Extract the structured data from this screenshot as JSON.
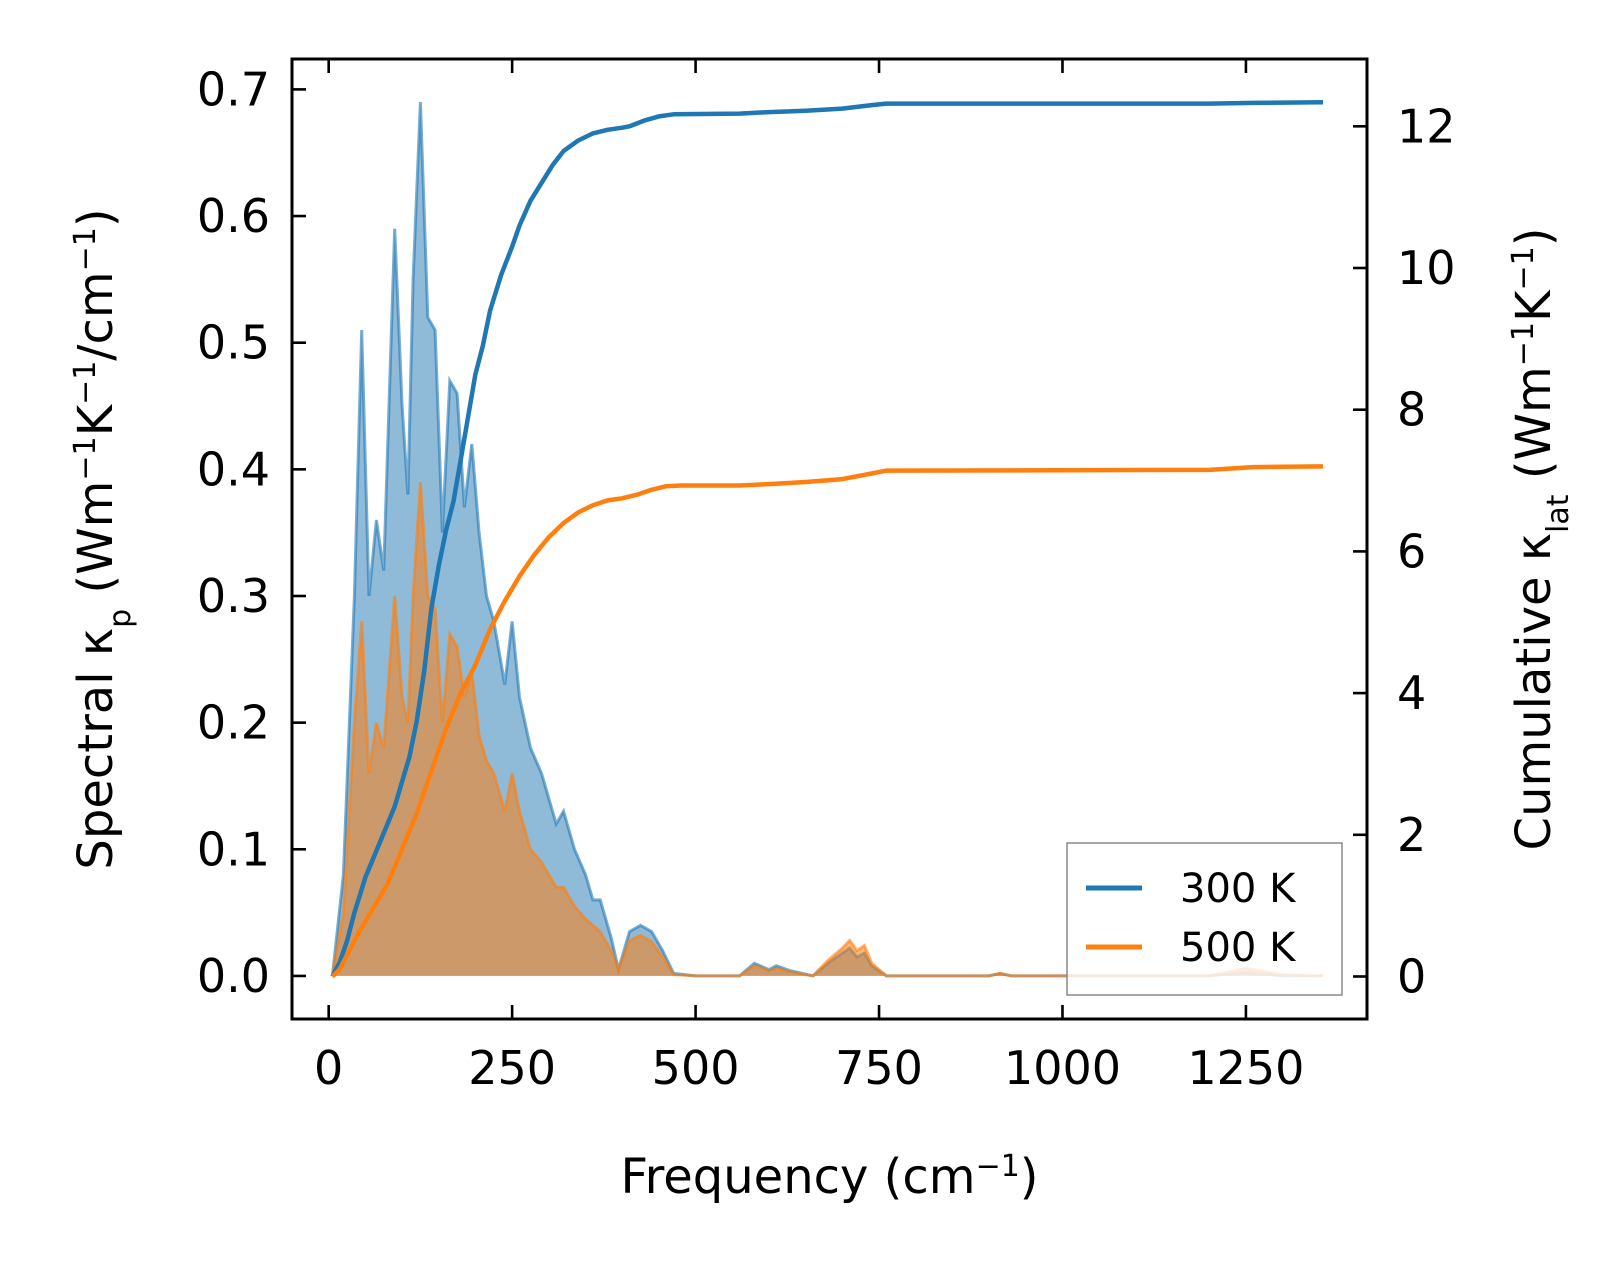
{
  "chart_data": {
    "type": "line",
    "xlabel": {
      "text": "Frequency (cm",
      "sup": "−1",
      "tail": ")"
    },
    "ylabel_left": {
      "pre": "Spectral κ",
      "sub": "p",
      "mid": " (Wm",
      "sup1": "−1",
      "mid2": "K",
      "sup2": "−1",
      "mid3": "/cm",
      "sup3": "−1",
      "tail": ")"
    },
    "ylabel_right": {
      "pre": "Cumulative κ",
      "sub": "lat",
      "mid": " (Wm",
      "sup1": "−1",
      "mid2": "K",
      "sup2": "−1",
      "tail": ")"
    },
    "xlim": [
      -50,
      1415
    ],
    "ylim_left": [
      -0.034,
      0.724
    ],
    "ylim_right": [
      -0.6,
      12.95
    ],
    "x_ticks": [
      0,
      250,
      500,
      750,
      1000,
      1250
    ],
    "x_tick_labels": [
      "0",
      "250",
      "500",
      "750",
      "1000",
      "1250"
    ],
    "y_left_ticks": [
      0.0,
      0.1,
      0.2,
      0.3,
      0.4,
      0.5,
      0.6,
      0.7
    ],
    "y_left_tick_labels": [
      "0.0",
      "0.1",
      "0.2",
      "0.3",
      "0.4",
      "0.5",
      "0.6",
      "0.7"
    ],
    "y_right_ticks": [
      0,
      2,
      4,
      6,
      8,
      10,
      12
    ],
    "y_right_tick_labels": [
      "0",
      "2",
      "4",
      "6",
      "8",
      "10",
      "12"
    ],
    "legend": {
      "position": "lower-right",
      "entries": [
        "300 K",
        "500 K"
      ]
    },
    "series": [
      {
        "name": "300 K",
        "color": "#1f77b4",
        "spectral": [
          [
            5,
            0
          ],
          [
            20,
            0.08
          ],
          [
            35,
            0.3
          ],
          [
            45,
            0.51
          ],
          [
            55,
            0.3
          ],
          [
            65,
            0.36
          ],
          [
            75,
            0.32
          ],
          [
            90,
            0.59
          ],
          [
            100,
            0.45
          ],
          [
            108,
            0.38
          ],
          [
            115,
            0.55
          ],
          [
            125,
            0.69
          ],
          [
            135,
            0.52
          ],
          [
            145,
            0.51
          ],
          [
            155,
            0.35
          ],
          [
            165,
            0.47
          ],
          [
            175,
            0.46
          ],
          [
            185,
            0.37
          ],
          [
            195,
            0.42
          ],
          [
            205,
            0.35
          ],
          [
            215,
            0.3
          ],
          [
            225,
            0.28
          ],
          [
            240,
            0.23
          ],
          [
            250,
            0.28
          ],
          [
            260,
            0.22
          ],
          [
            275,
            0.18
          ],
          [
            290,
            0.16
          ],
          [
            310,
            0.12
          ],
          [
            320,
            0.13
          ],
          [
            335,
            0.1
          ],
          [
            350,
            0.08
          ],
          [
            360,
            0.06
          ],
          [
            370,
            0.06
          ],
          [
            385,
            0.03
          ],
          [
            395,
            0.005
          ],
          [
            410,
            0.035
          ],
          [
            425,
            0.04
          ],
          [
            440,
            0.035
          ],
          [
            455,
            0.02
          ],
          [
            470,
            0.002
          ],
          [
            500,
            0
          ],
          [
            560,
            0
          ],
          [
            580,
            0.01
          ],
          [
            600,
            0.005
          ],
          [
            610,
            0.008
          ],
          [
            630,
            0.004
          ],
          [
            660,
            0
          ],
          [
            680,
            0.01
          ],
          [
            700,
            0.018
          ],
          [
            710,
            0.022
          ],
          [
            720,
            0.015
          ],
          [
            730,
            0.018
          ],
          [
            740,
            0.008
          ],
          [
            760,
            0
          ],
          [
            900,
            0
          ],
          [
            915,
            0.002
          ],
          [
            930,
            0
          ],
          [
            1200,
            0
          ],
          [
            1250,
            0.003
          ],
          [
            1300,
            0
          ],
          [
            1355,
            0
          ]
        ],
        "cumulative": [
          [
            5,
            0
          ],
          [
            15,
            0.2
          ],
          [
            25,
            0.5
          ],
          [
            35,
            0.9
          ],
          [
            50,
            1.4
          ],
          [
            70,
            1.9
          ],
          [
            90,
            2.4
          ],
          [
            110,
            3.1
          ],
          [
            120,
            3.6
          ],
          [
            130,
            4.3
          ],
          [
            140,
            5.2
          ],
          [
            150,
            5.8
          ],
          [
            160,
            6.3
          ],
          [
            170,
            6.7
          ],
          [
            180,
            7.3
          ],
          [
            190,
            7.9
          ],
          [
            200,
            8.5
          ],
          [
            210,
            8.9
          ],
          [
            220,
            9.4
          ],
          [
            235,
            9.9
          ],
          [
            250,
            10.3
          ],
          [
            260,
            10.6
          ],
          [
            275,
            10.95
          ],
          [
            290,
            11.2
          ],
          [
            305,
            11.45
          ],
          [
            320,
            11.65
          ],
          [
            340,
            11.8
          ],
          [
            360,
            11.9
          ],
          [
            380,
            11.95
          ],
          [
            400,
            11.98
          ],
          [
            410,
            12.0
          ],
          [
            430,
            12.08
          ],
          [
            450,
            12.14
          ],
          [
            470,
            12.17
          ],
          [
            560,
            12.18
          ],
          [
            600,
            12.2
          ],
          [
            650,
            12.22
          ],
          [
            700,
            12.25
          ],
          [
            740,
            12.3
          ],
          [
            760,
            12.32
          ],
          [
            1200,
            12.32
          ],
          [
            1260,
            12.33
          ],
          [
            1355,
            12.34
          ]
        ]
      },
      {
        "name": "500 K",
        "color": "#ff7f0e",
        "spectral": [
          [
            5,
            0
          ],
          [
            20,
            0.05
          ],
          [
            35,
            0.2
          ],
          [
            45,
            0.28
          ],
          [
            55,
            0.16
          ],
          [
            65,
            0.2
          ],
          [
            75,
            0.18
          ],
          [
            90,
            0.3
          ],
          [
            100,
            0.22
          ],
          [
            108,
            0.2
          ],
          [
            115,
            0.3
          ],
          [
            125,
            0.39
          ],
          [
            135,
            0.3
          ],
          [
            145,
            0.29
          ],
          [
            155,
            0.2
          ],
          [
            165,
            0.27
          ],
          [
            175,
            0.26
          ],
          [
            185,
            0.22
          ],
          [
            195,
            0.24
          ],
          [
            205,
            0.19
          ],
          [
            215,
            0.17
          ],
          [
            225,
            0.16
          ],
          [
            240,
            0.13
          ],
          [
            250,
            0.16
          ],
          [
            260,
            0.13
          ],
          [
            275,
            0.1
          ],
          [
            290,
            0.09
          ],
          [
            310,
            0.07
          ],
          [
            320,
            0.07
          ],
          [
            335,
            0.055
          ],
          [
            350,
            0.045
          ],
          [
            360,
            0.04
          ],
          [
            370,
            0.035
          ],
          [
            385,
            0.02
          ],
          [
            395,
            0.005
          ],
          [
            410,
            0.028
          ],
          [
            425,
            0.032
          ],
          [
            440,
            0.027
          ],
          [
            455,
            0.015
          ],
          [
            470,
            0.001
          ],
          [
            500,
            0
          ],
          [
            560,
            0
          ],
          [
            580,
            0.008
          ],
          [
            600,
            0.004
          ],
          [
            610,
            0.006
          ],
          [
            630,
            0.003
          ],
          [
            660,
            0
          ],
          [
            680,
            0.012
          ],
          [
            700,
            0.022
          ],
          [
            710,
            0.028
          ],
          [
            720,
            0.02
          ],
          [
            730,
            0.024
          ],
          [
            740,
            0.01
          ],
          [
            760,
            0
          ],
          [
            900,
            0
          ],
          [
            915,
            0.002
          ],
          [
            930,
            0
          ],
          [
            1200,
            0
          ],
          [
            1250,
            0.006
          ],
          [
            1300,
            0.001
          ],
          [
            1355,
            0
          ]
        ],
        "cumulative": [
          [
            5,
            0
          ],
          [
            15,
            0.1
          ],
          [
            25,
            0.3
          ],
          [
            40,
            0.6
          ],
          [
            60,
            0.95
          ],
          [
            80,
            1.3
          ],
          [
            100,
            1.8
          ],
          [
            120,
            2.3
          ],
          [
            140,
            2.9
          ],
          [
            160,
            3.5
          ],
          [
            180,
            4.0
          ],
          [
            200,
            4.4
          ],
          [
            220,
            4.9
          ],
          [
            240,
            5.3
          ],
          [
            260,
            5.65
          ],
          [
            280,
            5.95
          ],
          [
            300,
            6.2
          ],
          [
            320,
            6.4
          ],
          [
            340,
            6.55
          ],
          [
            360,
            6.65
          ],
          [
            380,
            6.72
          ],
          [
            400,
            6.75
          ],
          [
            420,
            6.8
          ],
          [
            440,
            6.87
          ],
          [
            460,
            6.92
          ],
          [
            480,
            6.93
          ],
          [
            560,
            6.93
          ],
          [
            600,
            6.95
          ],
          [
            650,
            6.98
          ],
          [
            700,
            7.02
          ],
          [
            740,
            7.1
          ],
          [
            760,
            7.14
          ],
          [
            1200,
            7.15
          ],
          [
            1260,
            7.19
          ],
          [
            1355,
            7.2
          ]
        ]
      }
    ]
  }
}
